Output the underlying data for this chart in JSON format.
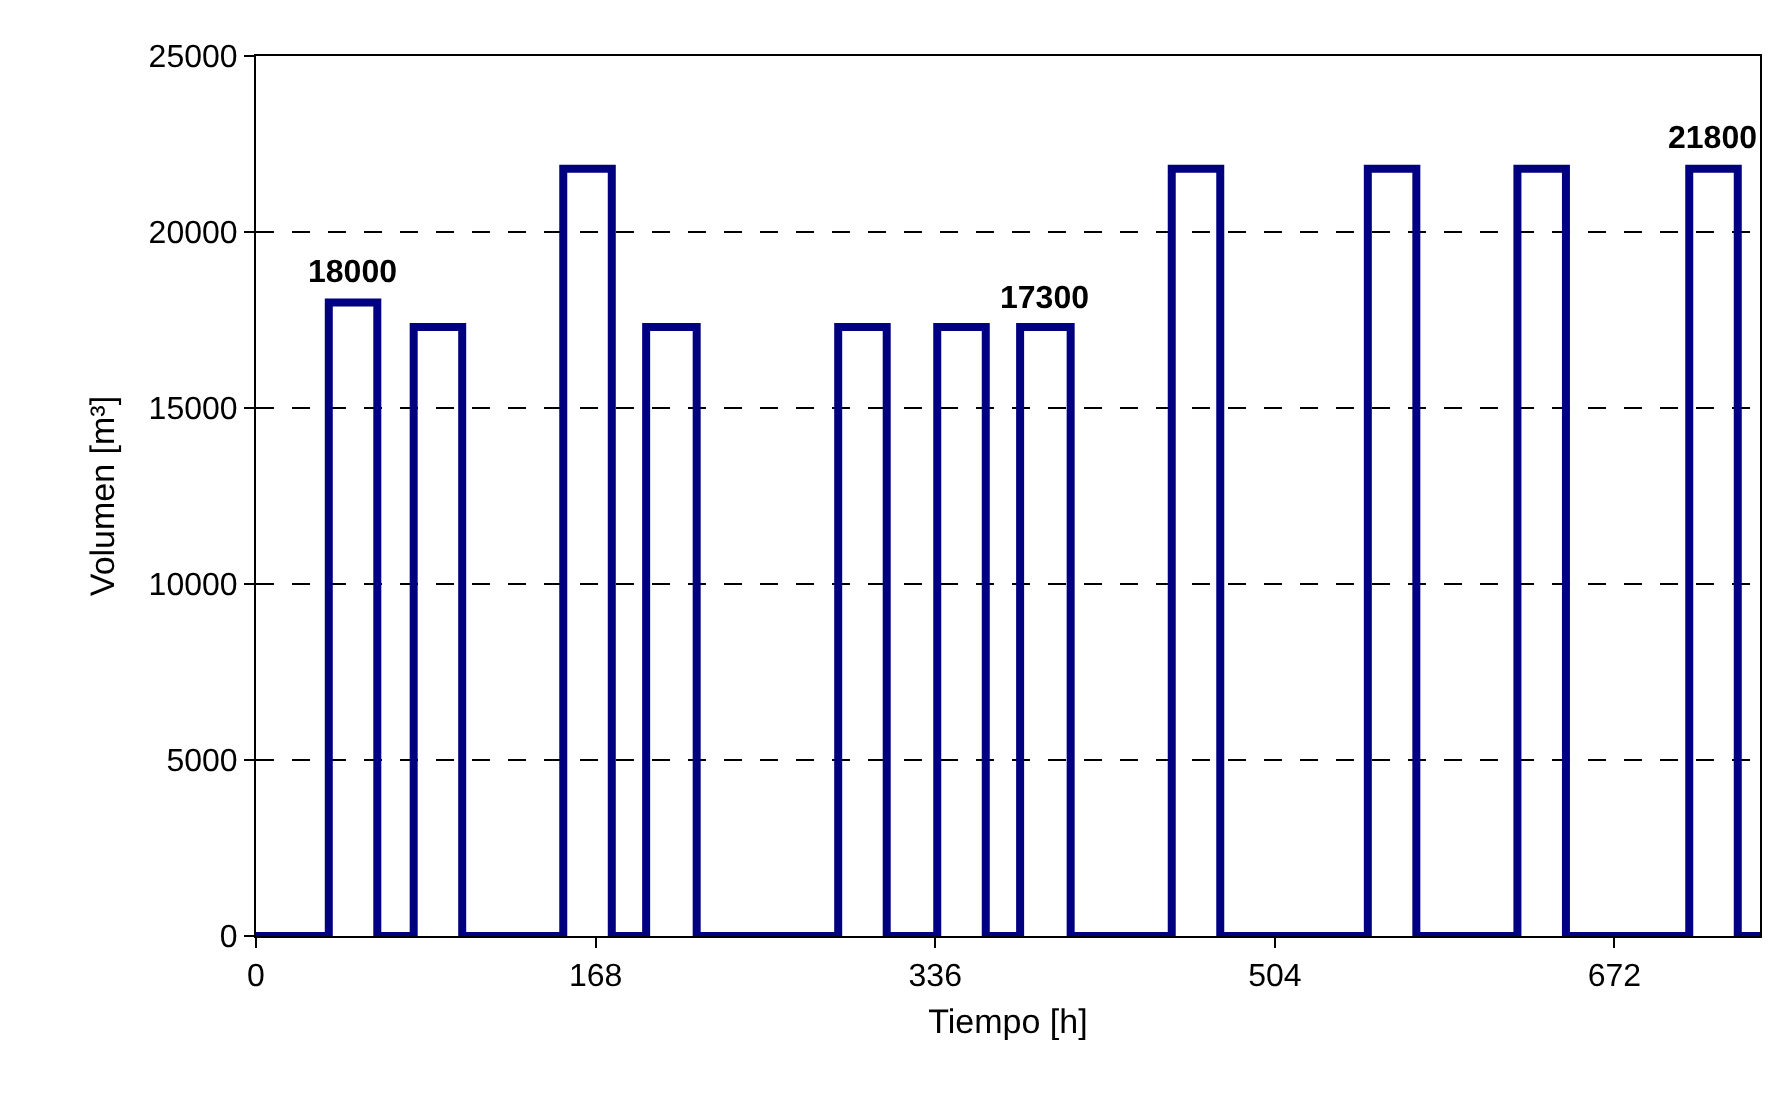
{
  "chart_data": {
    "type": "step",
    "xlabel": "Tiempo [h]",
    "ylabel": "Volumen [m³]",
    "x": [
      0,
      36,
      60,
      78,
      102,
      152,
      176,
      193,
      218,
      288,
      312,
      337,
      361,
      378,
      403,
      453,
      477,
      550,
      574,
      624,
      648,
      709,
      733,
      744
    ],
    "series": [
      {
        "color": "#000080",
        "values": [
          0,
          18000,
          0,
          17300,
          0,
          21800,
          0,
          17300,
          0,
          17300,
          0,
          17300,
          0,
          17300,
          0,
          21800,
          0,
          21800,
          0,
          21800,
          0,
          21800,
          0,
          0
        ]
      }
    ],
    "xlim": [
      0,
      744
    ],
    "xticks": [
      0,
      168,
      336,
      504,
      672
    ],
    "ylim": [
      0,
      25000
    ],
    "yticks": [
      0,
      5000,
      10000,
      15000,
      20000,
      25000
    ],
    "grid": "y",
    "marker": "none",
    "line_style": "solid",
    "annotations": [
      {
        "text": "18000",
        "x": 48,
        "y": 18000
      },
      {
        "text": "17300",
        "x": 390,
        "y": 17300
      },
      {
        "text": "21800",
        "x": 721,
        "y": 21800
      }
    ]
  }
}
